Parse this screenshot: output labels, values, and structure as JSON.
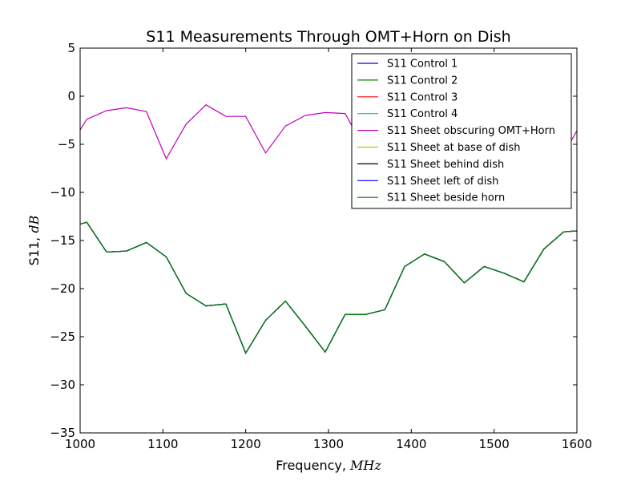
{
  "chart_data": {
    "type": "line",
    "title": "S11 Measurements Through OMT+Horn on Dish",
    "xlabel": {
      "text": "Frequency,",
      "unit": "MHz"
    },
    "ylabel": {
      "text": "S11,",
      "unit": "dB"
    },
    "xlim": [
      1000,
      1600
    ],
    "ylim": [
      -35,
      5
    ],
    "xticks": [
      1000,
      1100,
      1200,
      1300,
      1400,
      1500,
      1600
    ],
    "yticks": [
      5,
      0,
      -5,
      -10,
      -15,
      -20,
      -25,
      -30,
      -35
    ],
    "xtick_labels": [
      "1000",
      "1100",
      "1200",
      "1300",
      "1400",
      "1500",
      "1600"
    ],
    "ytick_labels": [
      "5",
      "0",
      "−5",
      "−10",
      "−15",
      "−20",
      "−25",
      "−30",
      "−35"
    ],
    "grid": false,
    "legend_position": "top-right",
    "x": [
      1000,
      1008,
      1032,
      1056,
      1080,
      1104,
      1128,
      1152,
      1176,
      1200,
      1224,
      1248,
      1272,
      1296,
      1320,
      1344,
      1368,
      1392,
      1416,
      1440,
      1464,
      1488,
      1512,
      1536,
      1560,
      1584,
      1600
    ],
    "series": [
      {
        "name": "S11 Control 1",
        "color": "#0000ff",
        "values": [
          -13.3,
          -13.1,
          -16.2,
          -16.1,
          -15.2,
          -16.7,
          -20.5,
          -21.8,
          -21.6,
          -26.7,
          -23.3,
          -21.3,
          -23.9,
          -26.6,
          -22.7,
          -22.7,
          -22.2,
          -17.7,
          -16.4,
          -17.2,
          -19.4,
          -17.7,
          -18.4,
          -19.3,
          -15.9,
          -14.1,
          -14.0
        ]
      },
      {
        "name": "S11 Control 2",
        "color": "#008000",
        "values": [
          -13.3,
          -13.1,
          -16.2,
          -16.1,
          -15.2,
          -16.7,
          -20.5,
          -21.8,
          -21.6,
          -26.7,
          -23.3,
          -21.3,
          -23.9,
          -26.6,
          -22.7,
          -22.7,
          -22.2,
          -17.7,
          -16.4,
          -17.2,
          -19.4,
          -17.7,
          -18.4,
          -19.3,
          -15.9,
          -14.1,
          -14.0
        ]
      },
      {
        "name": "S11 Control 3",
        "color": "#ff0000",
        "values": [
          -13.3,
          -13.1,
          -16.2,
          -16.1,
          -15.2,
          -16.7,
          -20.5,
          -21.8,
          -21.6,
          -26.7,
          -23.3,
          -21.3,
          -23.9,
          -26.6,
          -22.7,
          -22.7,
          -22.2,
          -17.7,
          -16.4,
          -17.2,
          -19.4,
          -17.7,
          -18.4,
          -19.3,
          -15.9,
          -14.1,
          -14.0
        ]
      },
      {
        "name": "S11 Control 4",
        "color": "#00bfbf",
        "values": [
          -13.3,
          -13.1,
          -16.2,
          -16.1,
          -15.2,
          -16.7,
          -20.5,
          -21.8,
          -21.6,
          -26.7,
          -23.3,
          -21.3,
          -23.9,
          -26.6,
          -22.7,
          -22.7,
          -22.2,
          -17.7,
          -16.4,
          -17.2,
          -19.4,
          -17.7,
          -18.4,
          -19.3,
          -15.9,
          -14.1,
          -14.0
        ]
      },
      {
        "name": "S11 Sheet obscuring OMT+Horn",
        "color": "#bf00bf",
        "values": [
          -3.5,
          -2.4,
          -1.5,
          -1.2,
          -1.6,
          -6.5,
          -2.9,
          -0.9,
          -2.1,
          -2.1,
          -5.9,
          -3.1,
          -2.0,
          -1.7,
          -1.8,
          -5.5,
          -4.0,
          -2.0,
          -1.5,
          -3.0,
          -4.0,
          -2.5,
          -2.0,
          -3.0,
          -5.0,
          -6.0,
          -3.6
        ]
      },
      {
        "name": "S11 Sheet at base of dish",
        "color": "#bfbf00",
        "values": [
          -13.3,
          -13.1,
          -16.2,
          -16.1,
          -15.2,
          -16.7,
          -20.5,
          -21.8,
          -21.6,
          -26.7,
          -23.3,
          -21.3,
          -23.9,
          -26.6,
          -22.7,
          -22.7,
          -22.2,
          -17.7,
          -16.4,
          -17.2,
          -19.4,
          -17.7,
          -18.4,
          -19.3,
          -15.9,
          -14.1,
          -14.0
        ]
      },
      {
        "name": "S11 Sheet behind dish",
        "color": "#000000",
        "values": [
          -13.3,
          -13.1,
          -16.2,
          -16.1,
          -15.2,
          -16.7,
          -20.5,
          -21.8,
          -21.6,
          -26.7,
          -23.3,
          -21.3,
          -23.9,
          -26.6,
          -22.7,
          -22.7,
          -22.2,
          -17.7,
          -16.4,
          -17.2,
          -19.4,
          -17.7,
          -18.4,
          -19.3,
          -15.9,
          -14.1,
          -14.0
        ]
      },
      {
        "name": "S11 Sheet left of dish",
        "color": "#0000ff",
        "values": [
          -13.3,
          -13.1,
          -16.2,
          -16.1,
          -15.2,
          -16.7,
          -20.5,
          -21.8,
          -21.6,
          -26.7,
          -23.3,
          -21.3,
          -23.9,
          -26.6,
          -22.7,
          -22.7,
          -22.2,
          -17.7,
          -16.4,
          -17.2,
          -19.4,
          -17.7,
          -18.4,
          -19.3,
          -15.9,
          -14.1,
          -14.0
        ]
      },
      {
        "name": "S11 Sheet beside horn",
        "color": "#008000",
        "values": [
          -13.3,
          -13.1,
          -16.2,
          -16.1,
          -15.2,
          -16.7,
          -20.5,
          -21.8,
          -21.6,
          -26.7,
          -23.3,
          -21.3,
          -23.9,
          -26.6,
          -22.7,
          -22.7,
          -22.2,
          -17.7,
          -16.4,
          -17.2,
          -19.4,
          -17.7,
          -18.4,
          -19.3,
          -15.9,
          -14.1,
          -14.0
        ]
      }
    ]
  }
}
